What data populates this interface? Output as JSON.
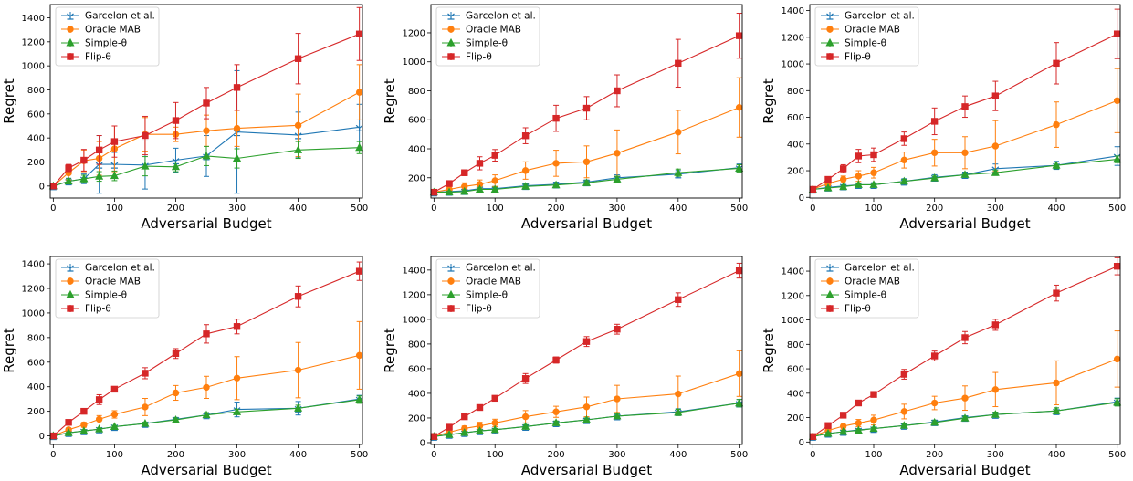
{
  "legend_labels": [
    "Garcelon et al.",
    "Oracle MAB",
    "Simple-θ",
    "Flip-θ"
  ],
  "series_colors": [
    "#1f77b4",
    "#ff7f0e",
    "#2ca02c",
    "#d62728"
  ],
  "series_markers": [
    "tri-down-bar",
    "circle",
    "triangle",
    "square"
  ],
  "chart_data": [
    {
      "type": "line",
      "xlabel": "Adversarial Budget",
      "ylabel": "Regret",
      "x": [
        0,
        25,
        50,
        75,
        100,
        150,
        200,
        250,
        300,
        400,
        500
      ],
      "xticks": [
        0,
        100,
        200,
        300,
        400,
        500
      ],
      "xlim": [
        -5,
        505
      ],
      "yticks": [
        0,
        200,
        400,
        600,
        800,
        1000,
        1200,
        1400
      ],
      "ylim": [
        -100,
        1510
      ],
      "legend": "top-left",
      "grid": false,
      "series": [
        {
          "name": "Garcelon et al.",
          "values": [
            0,
            40,
            60,
            180,
            180,
            175,
            215,
            250,
            450,
            425,
            490
          ],
          "err": [
            10,
            25,
            40,
            240,
            100,
            200,
            100,
            170,
            510,
            190,
            190
          ]
        },
        {
          "name": "Oracle MAB",
          "values": [
            0,
            110,
            210,
            230,
            310,
            430,
            430,
            460,
            480,
            505,
            780
          ],
          "err": [
            10,
            60,
            90,
            140,
            190,
            140,
            60,
            130,
            150,
            260,
            230
          ]
        },
        {
          "name": "Simple-θ",
          "values": [
            0,
            40,
            60,
            80,
            85,
            165,
            160,
            250,
            230,
            300,
            320
          ],
          "err": [
            10,
            20,
            30,
            40,
            40,
            80,
            40,
            80,
            80,
            70,
            50
          ]
        },
        {
          "name": "Flip-θ",
          "values": [
            0,
            150,
            215,
            300,
            370,
            420,
            545,
            690,
            820,
            1060,
            1265
          ],
          "err": [
            10,
            30,
            90,
            120,
            130,
            160,
            150,
            130,
            190,
            210,
            220
          ]
        }
      ]
    },
    {
      "type": "line",
      "xlabel": "Adversarial Budget",
      "ylabel": "Regret",
      "x": [
        0,
        25,
        50,
        75,
        100,
        150,
        200,
        250,
        300,
        400,
        500
      ],
      "xticks": [
        0,
        100,
        200,
        300,
        400,
        500
      ],
      "xlim": [
        -5,
        505
      ],
      "yticks": [
        200,
        400,
        600,
        800,
        1000,
        1200
      ],
      "ylim": [
        60,
        1395
      ],
      "legend": "top-left",
      "grid": false,
      "series": [
        {
          "name": "Garcelon et al.",
          "values": [
            100,
            105,
            110,
            125,
            125,
            145,
            155,
            170,
            200,
            225,
            270
          ],
          "err": [
            5,
            8,
            10,
            15,
            15,
            15,
            15,
            15,
            20,
            25,
            25
          ]
        },
        {
          "name": "Oracle MAB",
          "values": [
            100,
            120,
            140,
            155,
            180,
            250,
            300,
            310,
            370,
            515,
            685
          ],
          "err": [
            10,
            20,
            25,
            30,
            40,
            60,
            90,
            110,
            160,
            150,
            205
          ]
        },
        {
          "name": "Simple-θ",
          "values": [
            100,
            100,
            105,
            120,
            120,
            140,
            150,
            165,
            190,
            235,
            265
          ],
          "err": [
            5,
            8,
            10,
            10,
            15,
            15,
            15,
            15,
            20,
            25,
            25
          ]
        },
        {
          "name": "Flip-θ",
          "values": [
            100,
            160,
            235,
            300,
            355,
            490,
            610,
            680,
            800,
            990,
            1180
          ],
          "err": [
            10,
            15,
            20,
            45,
            40,
            55,
            90,
            80,
            110,
            165,
            155
          ]
        }
      ]
    },
    {
      "type": "line",
      "xlabel": "Adversarial Budget",
      "ylabel": "Regret",
      "x": [
        0,
        25,
        50,
        75,
        100,
        150,
        200,
        250,
        300,
        400,
        500
      ],
      "xticks": [
        0,
        100,
        200,
        300,
        400,
        500
      ],
      "xlim": [
        -5,
        505
      ],
      "yticks": [
        0,
        200,
        400,
        600,
        800,
        1000,
        1200,
        1400
      ],
      "ylim": [
        -5,
        1445
      ],
      "legend": "top-left",
      "grid": false,
      "series": [
        {
          "name": "Garcelon et al.",
          "values": [
            60,
            75,
            85,
            95,
            95,
            120,
            150,
            170,
            215,
            240,
            310
          ],
          "err": [
            5,
            10,
            10,
            12,
            15,
            20,
            20,
            20,
            35,
            30,
            70
          ]
        },
        {
          "name": "Oracle MAB",
          "values": [
            60,
            105,
            135,
            160,
            185,
            280,
            335,
            335,
            385,
            545,
            725
          ],
          "err": [
            5,
            20,
            25,
            40,
            40,
            60,
            100,
            120,
            190,
            170,
            240
          ]
        },
        {
          "name": "Simple-θ",
          "values": [
            60,
            70,
            80,
            95,
            95,
            120,
            145,
            170,
            185,
            240,
            285
          ],
          "err": [
            5,
            8,
            10,
            10,
            10,
            15,
            15,
            15,
            20,
            25,
            25
          ]
        },
        {
          "name": "Flip-θ",
          "values": [
            60,
            135,
            215,
            310,
            320,
            440,
            570,
            680,
            760,
            1005,
            1225
          ],
          "err": [
            5,
            15,
            30,
            50,
            50,
            50,
            100,
            80,
            110,
            155,
            185
          ]
        }
      ]
    },
    {
      "type": "line",
      "xlabel": "Adversarial Budget",
      "ylabel": "Regret",
      "x": [
        0,
        25,
        50,
        75,
        100,
        150,
        200,
        250,
        300,
        400,
        500
      ],
      "xticks": [
        0,
        100,
        200,
        300,
        400,
        500
      ],
      "xlim": [
        -5,
        505
      ],
      "yticks": [
        0,
        200,
        400,
        600,
        800,
        1000,
        1200,
        1400
      ],
      "ylim": [
        -70,
        1460
      ],
      "legend": "top-left",
      "grid": false,
      "series": [
        {
          "name": "Garcelon et al.",
          "values": [
            0,
            25,
            40,
            55,
            75,
            100,
            135,
            170,
            215,
            225,
            300
          ],
          "err": [
            5,
            8,
            10,
            10,
            10,
            10,
            15,
            20,
            60,
            55,
            30
          ]
        },
        {
          "name": "Oracle MAB",
          "values": [
            0,
            50,
            90,
            135,
            175,
            235,
            350,
            395,
            470,
            535,
            655
          ],
          "err": [
            5,
            15,
            20,
            30,
            30,
            70,
            60,
            90,
            175,
            225,
            275
          ]
        },
        {
          "name": "Simple-θ",
          "values": [
            0,
            25,
            40,
            55,
            75,
            100,
            130,
            170,
            195,
            225,
            295
          ],
          "err": [
            5,
            8,
            10,
            10,
            10,
            10,
            15,
            20,
            20,
            25,
            30
          ]
        },
        {
          "name": "Flip-θ",
          "values": [
            0,
            110,
            200,
            295,
            380,
            510,
            670,
            830,
            890,
            1135,
            1340
          ],
          "err": [
            5,
            15,
            20,
            40,
            20,
            45,
            40,
            75,
            60,
            85,
            75
          ]
        }
      ]
    },
    {
      "type": "line",
      "xlabel": "Adversarial Budget",
      "ylabel": "Regret",
      "x": [
        0,
        25,
        50,
        75,
        100,
        150,
        200,
        250,
        300,
        400,
        500
      ],
      "xticks": [
        0,
        100,
        200,
        300,
        400,
        500
      ],
      "xlim": [
        -5,
        505
      ],
      "yticks": [
        0,
        200,
        400,
        600,
        800,
        1000,
        1200,
        1400
      ],
      "ylim": [
        -15,
        1510
      ],
      "legend": "top-left",
      "grid": false,
      "series": [
        {
          "name": "Garcelon et al.",
          "values": [
            50,
            65,
            80,
            95,
            105,
            130,
            160,
            185,
            215,
            250,
            320
          ],
          "err": [
            5,
            8,
            10,
            10,
            10,
            15,
            15,
            15,
            20,
            25,
            30
          ]
        },
        {
          "name": "Oracle MAB",
          "values": [
            50,
            85,
            115,
            135,
            160,
            210,
            250,
            290,
            355,
            395,
            560
          ],
          "err": [
            5,
            15,
            20,
            30,
            30,
            50,
            45,
            80,
            110,
            145,
            185
          ]
        },
        {
          "name": "Simple-θ",
          "values": [
            50,
            65,
            80,
            95,
            105,
            130,
            160,
            185,
            215,
            245,
            320
          ],
          "err": [
            5,
            8,
            10,
            10,
            10,
            15,
            15,
            15,
            20,
            25,
            30
          ]
        },
        {
          "name": "Flip-θ",
          "values": [
            50,
            125,
            210,
            285,
            360,
            520,
            670,
            820,
            920,
            1160,
            1395
          ],
          "err": [
            5,
            15,
            15,
            20,
            20,
            40,
            25,
            40,
            40,
            55,
            60
          ]
        }
      ]
    },
    {
      "type": "line",
      "xlabel": "Adversarial Budget",
      "ylabel": "Regret",
      "x": [
        0,
        25,
        50,
        75,
        100,
        150,
        200,
        250,
        300,
        400,
        500
      ],
      "xticks": [
        0,
        100,
        200,
        300,
        400,
        500
      ],
      "xlim": [
        -5,
        505
      ],
      "yticks": [
        0,
        200,
        400,
        600,
        800,
        1000,
        1200,
        1400
      ],
      "ylim": [
        -20,
        1520
      ],
      "legend": "top-left",
      "grid": false,
      "series": [
        {
          "name": "Garcelon et al.",
          "values": [
            45,
            70,
            85,
            100,
            110,
            135,
            165,
            200,
            225,
            255,
            330
          ],
          "err": [
            5,
            8,
            10,
            10,
            10,
            15,
            15,
            15,
            20,
            25,
            30
          ]
        },
        {
          "name": "Oracle MAB",
          "values": [
            45,
            95,
            130,
            155,
            180,
            250,
            320,
            360,
            430,
            485,
            680
          ],
          "err": [
            5,
            20,
            25,
            30,
            40,
            60,
            55,
            100,
            140,
            180,
            230
          ]
        },
        {
          "name": "Simple-θ",
          "values": [
            45,
            70,
            85,
            95,
            110,
            135,
            160,
            195,
            225,
            255,
            325
          ],
          "err": [
            5,
            8,
            10,
            10,
            10,
            15,
            15,
            15,
            20,
            25,
            30
          ]
        },
        {
          "name": "Flip-θ",
          "values": [
            45,
            135,
            220,
            320,
            390,
            555,
            705,
            855,
            960,
            1220,
            1440
          ],
          "err": [
            5,
            15,
            15,
            20,
            20,
            40,
            40,
            50,
            45,
            65,
            70
          ]
        }
      ]
    }
  ]
}
